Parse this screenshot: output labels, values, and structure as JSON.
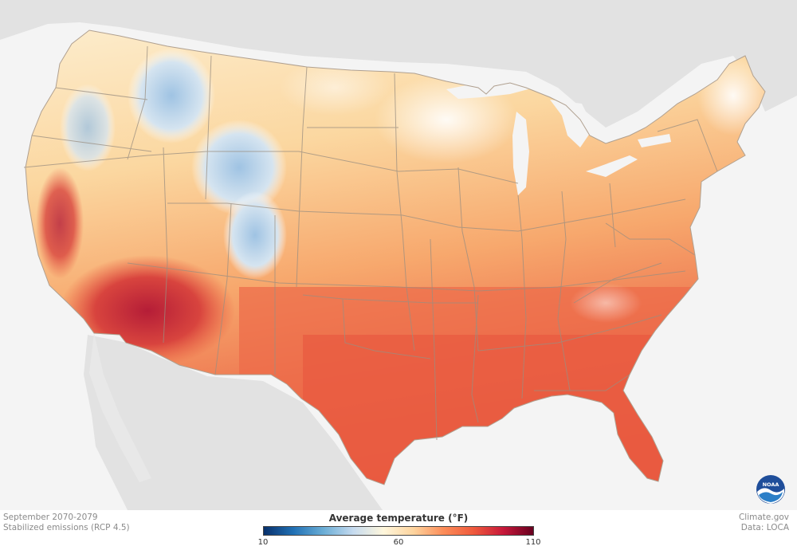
{
  "caption": {
    "period": "September 2070-2079",
    "scenario": "Stabilized emissions (RCP 4.5)"
  },
  "credits": {
    "site": "Climate.gov",
    "data": "Data: LOCA"
  },
  "legend": {
    "title": "Average temperature (°F)",
    "min": "10",
    "mid": "60",
    "max": "110",
    "colors": [
      "#08306b",
      "#2171b5",
      "#6baed6",
      "#c6dbef",
      "#fff7dc",
      "#fdd49e",
      "#fc8d59",
      "#ef5a3c",
      "#c7183a",
      "#67001f"
    ]
  },
  "logo": {
    "label": "NOAA",
    "icon": "noaa-logo"
  },
  "map_colors": {
    "background": "#f4f4f4",
    "land_outside": "#e2e2e2",
    "water": "#f4f4f4",
    "cool": "#b6cfe6",
    "mild": "#fdf1d6",
    "warm": "#fbc98d",
    "hot": "#f39463",
    "very_hot": "#ea5f42",
    "extreme": "#c9323d",
    "state_border": "#9a8e80"
  }
}
